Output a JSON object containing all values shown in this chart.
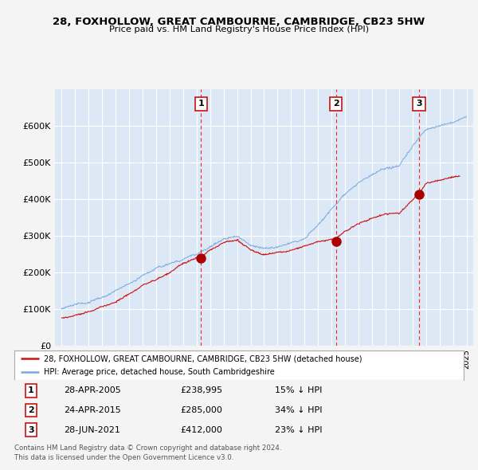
{
  "title": "28, FOXHOLLOW, GREAT CAMBOURNE, CAMBRIDGE, CB23 5HW",
  "subtitle": "Price paid vs. HM Land Registry's House Price Index (HPI)",
  "fig_bg_color": "#f4f4f4",
  "plot_bg_color": "#dce8f5",
  "grid_color": "#ffffff",
  "hpi_color": "#7aaadd",
  "price_color": "#cc1111",
  "sale_marker_color": "#aa0000",
  "sale_dates": [
    2005.33,
    2015.32,
    2021.49
  ],
  "sale_prices": [
    238995,
    285000,
    412000
  ],
  "sale_labels": [
    "1",
    "2",
    "3"
  ],
  "sale_label_dates": [
    "28-APR-2005",
    "24-APR-2015",
    "28-JUN-2021"
  ],
  "sale_label_prices": [
    "£238,995",
    "£285,000",
    "£412,000"
  ],
  "sale_label_pct": [
    "15% ↓ HPI",
    "34% ↓ HPI",
    "23% ↓ HPI"
  ],
  "vline_dates": [
    2005.33,
    2015.32,
    2021.49
  ],
  "ylim": [
    0,
    700000
  ],
  "yticks": [
    0,
    100000,
    200000,
    300000,
    400000,
    500000,
    600000
  ],
  "ytick_labels": [
    "£0",
    "£100K",
    "£200K",
    "£300K",
    "£400K",
    "£500K",
    "£600K"
  ],
  "xlim_start": 1994.5,
  "xlim_end": 2025.5,
  "legend_line1": "28, FOXHOLLOW, GREAT CAMBOURNE, CAMBRIDGE, CB23 5HW (detached house)",
  "legend_line2": "HPI: Average price, detached house, South Cambridgeshire",
  "footer1": "Contains HM Land Registry data © Crown copyright and database right 2024.",
  "footer2": "This data is licensed under the Open Government Licence v3.0."
}
